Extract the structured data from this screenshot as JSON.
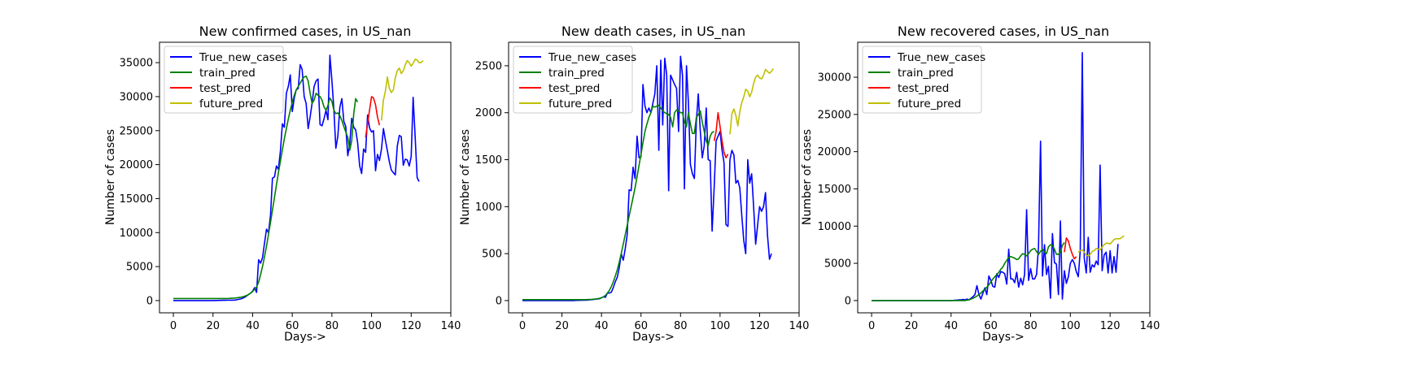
{
  "chart_data": [
    {
      "type": "line",
      "title": "New confirmed cases, in US_nan",
      "xlabel": "Days->",
      "ylabel": "Number of cases",
      "xlim": [
        -7,
        140
      ],
      "ylim": [
        -1800,
        38000
      ],
      "xticks": [
        0,
        20,
        40,
        60,
        80,
        100,
        120,
        140
      ],
      "yticks": [
        0,
        5000,
        10000,
        15000,
        20000,
        25000,
        30000,
        35000
      ],
      "legend_position": "top-left",
      "grid": false,
      "series": [
        {
          "name": "True_new_cases",
          "color": "#0000ff",
          "x_start": 0,
          "values": [
            1,
            0,
            0,
            0,
            0,
            0,
            1,
            2,
            0,
            1,
            2,
            0,
            0,
            1,
            2,
            3,
            3,
            5,
            6,
            8,
            10,
            15,
            20,
            25,
            30,
            40,
            45,
            50,
            55,
            60,
            70,
            80,
            120,
            180,
            240,
            350,
            500,
            700,
            900,
            1100,
            1400,
            1900,
            1200,
            6000,
            5500,
            6300,
            8500,
            10500,
            10000,
            12500,
            18000,
            18200,
            19800,
            19300,
            22000,
            26000,
            25500,
            30500,
            31500,
            33200,
            27800,
            29800,
            31000,
            31200,
            34700,
            34000,
            30000,
            29000,
            25300,
            27000,
            29000,
            31500,
            32300,
            32600,
            25900,
            25700,
            26700,
            28000,
            26600,
            36100,
            32300,
            28100,
            22400,
            24200,
            28400,
            29700,
            26400,
            25600,
            21300,
            23100,
            26800,
            25500,
            25100,
            23200,
            19800,
            18700,
            22300,
            21800,
            27300,
            25400,
            24800,
            25000,
            19100,
            21500,
            20600,
            22300,
            25300,
            23600,
            22000,
            20400,
            19200,
            18800,
            18500,
            22700,
            24300,
            24100,
            19900,
            20800,
            20700,
            19800,
            21200,
            29900,
            24000,
            18100,
            17500
          ]
        },
        {
          "name": "train_pred",
          "color": "#008000",
          "x_start": 0,
          "values": [
            300,
            300,
            300,
            300,
            300,
            300,
            300,
            300,
            300,
            300,
            300,
            300,
            300,
            300,
            300,
            300,
            300,
            300,
            300,
            300,
            300,
            300,
            300,
            300,
            300,
            300,
            300,
            300,
            320,
            340,
            360,
            380,
            400,
            450,
            500,
            560,
            650,
            760,
            900,
            1100,
            1350,
            1650,
            2000,
            2700,
            3800,
            5000,
            6500,
            8000,
            9700,
            11500,
            13300,
            15200,
            17000,
            18800,
            20500,
            22200,
            23800,
            25300,
            26700,
            28000,
            29200,
            30200,
            31000,
            31500,
            32000,
            32500,
            32900,
            33000,
            32300,
            30500,
            29000,
            29500,
            30500,
            30200,
            30000,
            29500,
            28500,
            28000,
            28700,
            29800,
            29300,
            28000,
            27500,
            27600,
            27200,
            26500,
            25600,
            24800,
            24000,
            22100,
            23500,
            27500,
            29700,
            29200
          ]
        },
        {
          "name": "test_pred",
          "color": "#ff0000",
          "x_start": 97,
          "values": [
            24000,
            26000,
            28000,
            30000,
            29800,
            28800,
            27000,
            25800
          ]
        },
        {
          "name": "future_pred",
          "color": "#bfbf00",
          "x_start": 105,
          "values": [
            26500,
            29500,
            30800,
            32900,
            31200,
            30600,
            31000,
            32800,
            33800,
            34200,
            33400,
            33800,
            34700,
            35300,
            35000,
            34500,
            34900,
            35500,
            35400,
            35000,
            35000,
            35300
          ]
        }
      ]
    },
    {
      "type": "line",
      "title": "New death cases, in US_nan",
      "xlabel": "Days->",
      "ylabel": "Number of cases",
      "xlim": [
        -7,
        140
      ],
      "ylim": [
        -130,
        2750
      ],
      "xticks": [
        0,
        20,
        40,
        60,
        80,
        100,
        120,
        140
      ],
      "yticks": [
        0,
        500,
        1000,
        1500,
        2000,
        2500
      ],
      "legend_position": "top-left",
      "grid": false,
      "series": [
        {
          "name": "True_new_cases",
          "color": "#0000ff",
          "x_start": 0,
          "values": [
            0,
            0,
            0,
            0,
            0,
            0,
            0,
            0,
            0,
            0,
            0,
            0,
            0,
            0,
            0,
            0,
            0,
            0,
            0,
            0,
            0,
            0,
            0,
            0,
            1,
            1,
            1,
            2,
            2,
            3,
            3,
            4,
            5,
            6,
            8,
            10,
            12,
            15,
            18,
            20,
            30,
            40,
            35,
            80,
            80,
            90,
            140,
            200,
            250,
            350,
            500,
            430,
            550,
            700,
            1180,
            1170,
            1420,
            1300,
            1750,
            1520,
            1530,
            2300,
            2070,
            2000,
            2050,
            2000,
            2100,
            2200,
            2500,
            1600,
            2560,
            1870,
            2580,
            2400,
            1170,
            2400,
            2350,
            2300,
            2260,
            1800,
            2600,
            2400,
            1190,
            2500,
            2100,
            1450,
            1350,
            1300,
            1900,
            2200,
            1800,
            1520,
            1650,
            2050,
            1500,
            1490,
            740,
            1200,
            1700,
            1750,
            1800,
            1600,
            1470,
            810,
            790,
            1500,
            1600,
            1550,
            1250,
            1280,
            1200,
            900,
            640,
            500,
            1500,
            1250,
            1350,
            1000,
            600,
            800,
            1000,
            950,
            1000,
            1150,
            700,
            440,
            500
          ]
        },
        {
          "name": "train_pred",
          "color": "#008000",
          "x_start": 0,
          "values": [
            10,
            10,
            10,
            10,
            10,
            10,
            10,
            10,
            10,
            10,
            10,
            10,
            10,
            10,
            10,
            10,
            10,
            10,
            10,
            10,
            10,
            10,
            10,
            10,
            10,
            10,
            10,
            10,
            10,
            10,
            10,
            10,
            10,
            11,
            12,
            13,
            15,
            17,
            20,
            24,
            30,
            40,
            55,
            80,
            110,
            150,
            200,
            260,
            330,
            410,
            500,
            600,
            700,
            800,
            900,
            1000,
            1100,
            1200,
            1320,
            1440,
            1560,
            1680,
            1800,
            1880,
            1950,
            2000,
            2070,
            2060,
            2070,
            2080,
            2050,
            2020,
            2000,
            1990,
            1980,
            1950,
            1850,
            2000,
            2030,
            2020,
            2000,
            2000,
            1900,
            1850,
            2000,
            1880,
            1780,
            1780,
            1950,
            1980,
            2020,
            1900,
            1800,
            1700,
            1650,
            1750,
            1790,
            1800
          ]
        },
        {
          "name": "test_pred",
          "color": "#ff0000",
          "x_start": 97,
          "values": [
            1700,
            1800,
            2000,
            1850,
            1700,
            1580,
            1520,
            1560
          ]
        },
        {
          "name": "future_pred",
          "color": "#bfbf00",
          "x_start": 105,
          "values": [
            1770,
            1990,
            2040,
            1970,
            1860,
            2010,
            2110,
            2170,
            2250,
            2230,
            2170,
            2220,
            2310,
            2380,
            2400,
            2370,
            2360,
            2400,
            2460,
            2440,
            2420,
            2440,
            2470
          ]
        }
      ]
    },
    {
      "type": "line",
      "title": "New recovered cases, in US_nan",
      "xlabel": "Days->",
      "ylabel": "Number of cases",
      "xlim": [
        -7,
        140
      ],
      "ylim": [
        -1650,
        34700
      ],
      "xticks": [
        0,
        20,
        40,
        60,
        80,
        100,
        120,
        140
      ],
      "yticks": [
        0,
        5000,
        10000,
        15000,
        20000,
        25000,
        30000
      ],
      "legend_position": "top-left",
      "grid": false,
      "series": [
        {
          "name": "True_new_cases",
          "color": "#0000ff",
          "x_start": 0,
          "values": [
            0,
            0,
            0,
            0,
            0,
            0,
            0,
            0,
            0,
            0,
            0,
            0,
            0,
            0,
            0,
            0,
            0,
            0,
            0,
            0,
            0,
            0,
            0,
            0,
            0,
            0,
            0,
            0,
            0,
            0,
            0,
            0,
            0,
            0,
            0,
            0,
            0,
            0,
            0,
            0,
            0,
            0,
            50,
            50,
            100,
            100,
            150,
            100,
            200,
            100,
            300,
            500,
            800,
            2000,
            800,
            200,
            1000,
            1700,
            800,
            3300,
            2700,
            1900,
            1800,
            3600,
            3100,
            3900,
            3800,
            3600,
            2200,
            6900,
            2900,
            2900,
            2400,
            3800,
            1800,
            3000,
            2100,
            3500,
            12200,
            2700,
            4300,
            2900,
            2900,
            3500,
            7200,
            21400,
            3300,
            7500,
            3500,
            4600,
            300,
            9000,
            5100,
            4900,
            800,
            10700,
            200,
            4000,
            2300,
            3200,
            5000,
            5500,
            5000,
            3900,
            3200,
            6700,
            33300,
            5700,
            3700,
            8500,
            3800,
            4800,
            4500,
            5300,
            4800,
            18200,
            4000,
            6100,
            6500,
            3700,
            6700,
            3700,
            5900,
            3800,
            7600
          ]
        },
        {
          "name": "train_pred",
          "color": "#008000",
          "x_start": 0,
          "values": [
            0,
            0,
            0,
            0,
            0,
            0,
            0,
            0,
            0,
            0,
            0,
            0,
            0,
            0,
            0,
            0,
            0,
            0,
            0,
            0,
            0,
            0,
            0,
            0,
            0,
            0,
            0,
            0,
            0,
            0,
            0,
            0,
            0,
            0,
            0,
            0,
            0,
            0,
            0,
            0,
            0,
            0,
            0,
            0,
            0,
            0,
            0,
            0,
            50,
            100,
            200,
            300,
            450,
            600,
            800,
            1000,
            1300,
            1500,
            1800,
            2100,
            2500,
            2900,
            3200,
            3500,
            3800,
            4200,
            4500,
            5000,
            5400,
            5800,
            5900,
            5800,
            5700,
            5500,
            5600,
            6000,
            6300,
            6200,
            6000,
            6300,
            6700,
            6900,
            7000,
            6600,
            6200,
            6600,
            6900,
            6500,
            6300,
            7200,
            7500,
            7400,
            6900,
            6200,
            6200,
            6500,
            7400,
            7800
          ]
        },
        {
          "name": "test_pred",
          "color": "#ff0000",
          "x_start": 97,
          "values": [
            6500,
            8400,
            8000,
            7000,
            6200,
            5600,
            5900
          ]
        },
        {
          "name": "future_pred",
          "color": "#bfbf00",
          "x_start": 104,
          "values": [
            6500,
            6700,
            6800,
            6500,
            6100,
            6000,
            6200,
            6600,
            6700,
            7000,
            6900,
            6800,
            7200,
            7500,
            7700,
            7700,
            7600,
            7900,
            8200,
            8300,
            8300,
            8300,
            8500,
            8700
          ]
        }
      ]
    }
  ]
}
